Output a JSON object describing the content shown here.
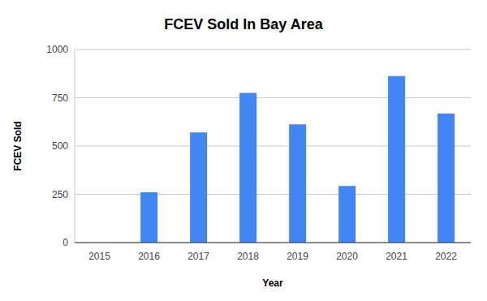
{
  "chart_data": {
    "type": "bar",
    "title": "FCEV Sold In Bay Area",
    "x_label": "Year",
    "y_label": "FCEV Sold",
    "categories": [
      "2015",
      "2016",
      "2017",
      "2018",
      "2019",
      "2020",
      "2021",
      "2022"
    ],
    "values": [
      0,
      260,
      570,
      775,
      612,
      293,
      862,
      668
    ],
    "color": "#4285f4",
    "ylim": [
      0,
      1000
    ],
    "yticks": [
      0,
      250,
      500,
      750,
      1000
    ],
    "grid": true
  }
}
